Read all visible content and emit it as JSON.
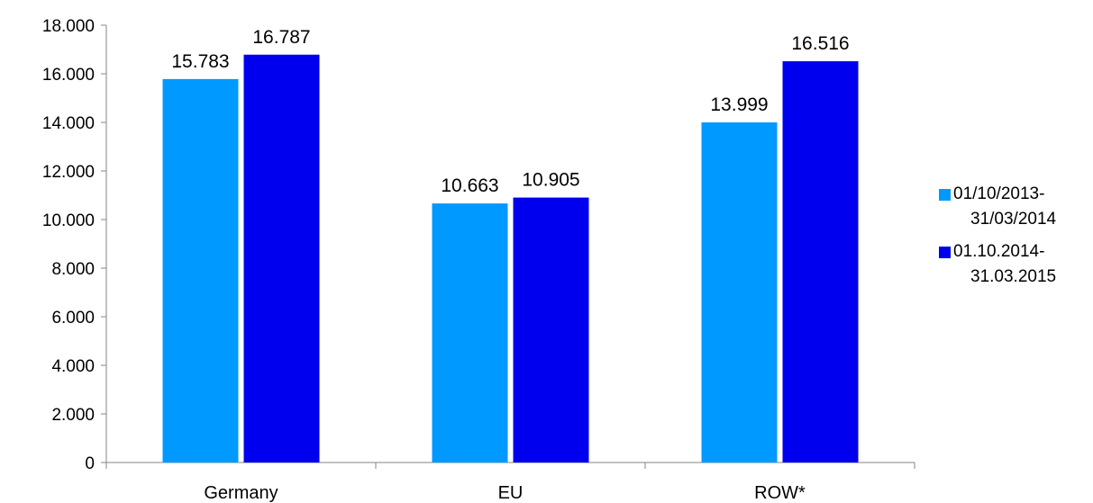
{
  "chart_data": {
    "type": "bar",
    "categories": [
      "Germany",
      "EU",
      "ROW*"
    ],
    "series": [
      {
        "name": "01/10/2013-31/03/2014",
        "values": [
          15783,
          10663,
          13999
        ],
        "labels": [
          "15.783",
          "10.663",
          "13.999"
        ],
        "color": "#0099FF"
      },
      {
        "name": "01.10.2014-31.03.2015",
        "values": [
          16787,
          10905,
          16516
        ],
        "labels": [
          "16.787",
          "10.905",
          "16.516"
        ],
        "color": "#0000EE"
      }
    ],
    "ylim": [
      0,
      18000
    ],
    "yticks": [
      0,
      2000,
      4000,
      6000,
      8000,
      10000,
      12000,
      14000,
      16000,
      18000
    ],
    "ytick_labels": [
      "0",
      "2.000",
      "4.000",
      "6.000",
      "8.000",
      "10.000",
      "12.000",
      "14.000",
      "16.000",
      "18.000"
    ],
    "grid": false,
    "legend_position": "right",
    "legend": [
      {
        "line1": "01/10/2013-",
        "line2": "31/03/2014",
        "color": "#0099FF"
      },
      {
        "line1": "01.10.2014-",
        "line2": "31.03.2015",
        "color": "#0000EE"
      }
    ]
  }
}
